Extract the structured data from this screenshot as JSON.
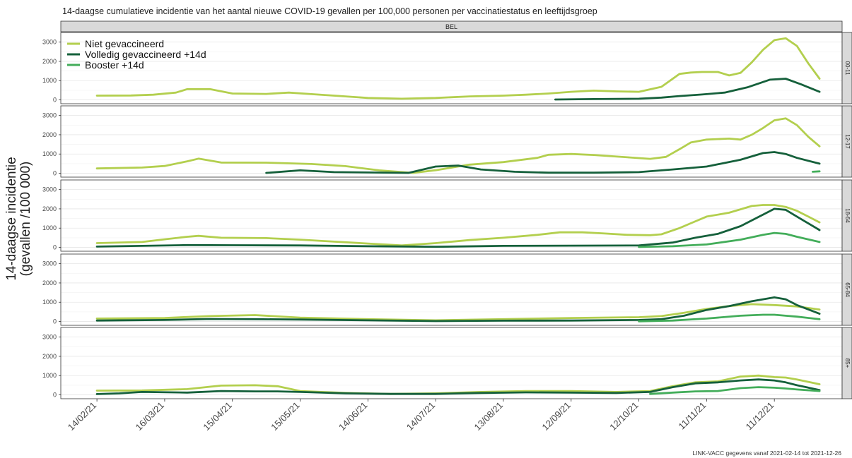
{
  "chart_data": {
    "type": "line",
    "title": "14-daagse cumulatieve incidentie van het aantal nieuwe COVID-19 gevallen per 100,000 personen per vaccinatiestatus en leeftijdsgroep",
    "ylabel_line1": "14-daagse incidentie",
    "ylabel_line2": "(gevallen /100 000)",
    "strip_top": "BEL",
    "caption": "LINK-VACC gegevens vanaf 2021-02-14 tot 2021-12-26",
    "x_ticks": [
      "14/02/21",
      "16/03/21",
      "15/04/21",
      "15/05/21",
      "14/06/21",
      "14/07/21",
      "13/08/21",
      "12/09/21",
      "12/10/21",
      "11/11/21",
      "11/12/21"
    ],
    "x_tick_days": [
      0,
      30,
      60,
      90,
      120,
      150,
      180,
      210,
      240,
      270,
      300
    ],
    "xlim_days": [
      -16,
      330
    ],
    "y_ticks": [
      0,
      1000,
      2000,
      3000
    ],
    "ylim": [
      -200,
      3500
    ],
    "legend_position": "top-left",
    "series_legend": [
      {
        "name": "Niet gevaccineerd",
        "color": "#b3cf4e"
      },
      {
        "name": "Volledig gevaccineerd +14d",
        "color": "#15603b"
      },
      {
        "name": "Booster +14d",
        "color": "#43ad5a"
      }
    ],
    "panels": [
      {
        "label": "00-11",
        "series": [
          {
            "name": "Niet gevaccineerd",
            "color": "#b3cf4e",
            "x": [
              0,
              15,
              25,
              35,
              40,
              50,
              60,
              75,
              85,
              95,
              105,
              120,
              135,
              150,
              165,
              180,
              190,
              200,
              210,
              220,
              230,
              240,
              250,
              258,
              263,
              268,
              275,
              280,
              285,
              290,
              295,
              300,
              305,
              310,
              315,
              320
            ],
            "y": [
              220,
              230,
              270,
              380,
              560,
              560,
              330,
              310,
              380,
              300,
              220,
              100,
              60,
              100,
              180,
              220,
              270,
              330,
              420,
              480,
              440,
              420,
              680,
              1350,
              1420,
              1450,
              1450,
              1270,
              1400,
              1950,
              2600,
              3100,
              3200,
              2800,
              1900,
              1100
            ]
          },
          {
            "name": "Volledig gevaccineerd +14d",
            "color": "#15603b",
            "x": [
              203,
              220,
              240,
              250,
              258,
              268,
              278,
              288,
              298,
              305,
              312,
              320
            ],
            "y": [
              20,
              40,
              60,
              120,
              200,
              280,
              380,
              650,
              1050,
              1100,
              800,
              420
            ]
          }
        ]
      },
      {
        "label": "12-17",
        "series": [
          {
            "name": "Niet gevaccineerd",
            "color": "#b3cf4e",
            "x": [
              0,
              20,
              30,
              40,
              45,
              55,
              75,
              95,
              110,
              125,
              140,
              150,
              165,
              180,
              195,
              200,
              210,
              220,
              235,
              245,
              252,
              258,
              263,
              270,
              280,
              285,
              290,
              295,
              300,
              305,
              310,
              315,
              320
            ],
            "y": [
              250,
              300,
              380,
              620,
              760,
              560,
              550,
              480,
              370,
              150,
              20,
              160,
              450,
              580,
              800,
              960,
              1000,
              950,
              830,
              750,
              850,
              1250,
              1600,
              1750,
              1800,
              1750,
              2000,
              2350,
              2750,
              2850,
              2500,
              1900,
              1400
            ]
          },
          {
            "name": "Volledig gevaccineerd +14d",
            "color": "#15603b",
            "x": [
              75,
              90,
              105,
              120,
              138,
              150,
              160,
              170,
              185,
              200,
              220,
              240,
              255,
              270,
              285,
              295,
              300,
              305,
              310,
              320
            ],
            "y": [
              20,
              150,
              60,
              40,
              20,
              350,
              400,
              200,
              80,
              30,
              30,
              60,
              200,
              350,
              700,
              1050,
              1100,
              1000,
              800,
              500
            ]
          },
          {
            "name": "Booster +14d",
            "color": "#43ad5a",
            "x": [
              317,
              320
            ],
            "y": [
              80,
              100
            ]
          }
        ]
      },
      {
        "label": "18-64",
        "series": [
          {
            "name": "Niet gevaccineerd",
            "color": "#b3cf4e",
            "x": [
              0,
              20,
              30,
              40,
              45,
              55,
              75,
              90,
              105,
              120,
              135,
              150,
              165,
              180,
              195,
              205,
              215,
              225,
              235,
              245,
              250,
              258,
              263,
              270,
              280,
              290,
              295,
              300,
              305,
              310,
              320
            ],
            "y": [
              220,
              280,
              420,
              550,
              600,
              500,
              480,
              400,
              300,
              200,
              100,
              220,
              380,
              500,
              650,
              780,
              780,
              720,
              650,
              630,
              680,
              1000,
              1250,
              1600,
              1800,
              2150,
              2200,
              2200,
              2100,
              1900,
              1300
            ]
          },
          {
            "name": "Volledig gevaccineerd +14d",
            "color": "#15603b",
            "x": [
              0,
              20,
              40,
              60,
              90,
              120,
              150,
              180,
              210,
              240,
              255,
              265,
              275,
              285,
              295,
              300,
              305,
              310,
              320
            ],
            "y": [
              40,
              80,
              120,
              110,
              100,
              60,
              30,
              80,
              90,
              100,
              250,
              500,
              700,
              1100,
              1700,
              2000,
              1950,
              1600,
              900
            ]
          },
          {
            "name": "Booster +14d",
            "color": "#43ad5a",
            "x": [
              240,
              255,
              270,
              285,
              295,
              300,
              305,
              310,
              320
            ],
            "y": [
              20,
              60,
              150,
              400,
              650,
              750,
              700,
              550,
              280
            ]
          }
        ]
      },
      {
        "label": "65-84",
        "series": [
          {
            "name": "Niet gevaccineerd",
            "color": "#b3cf4e",
            "x": [
              0,
              30,
              50,
              70,
              90,
              120,
              150,
              180,
              210,
              240,
              250,
              260,
              270,
              280,
              290,
              300,
              310,
              320
            ],
            "y": [
              150,
              180,
              280,
              330,
              200,
              120,
              60,
              120,
              180,
              220,
              280,
              450,
              650,
              800,
              900,
              850,
              780,
              620
            ]
          },
          {
            "name": "Volledig gevaccineerd +14d",
            "color": "#15603b",
            "x": [
              0,
              30,
              50,
              70,
              90,
              120,
              150,
              180,
              210,
              240,
              250,
              260,
              270,
              280,
              290,
              300,
              305,
              310,
              320
            ],
            "y": [
              50,
              80,
              130,
              120,
              100,
              60,
              20,
              40,
              50,
              80,
              120,
              300,
              600,
              800,
              1050,
              1250,
              1150,
              850,
              400
            ]
          },
          {
            "name": "Booster +14d",
            "color": "#43ad5a",
            "x": [
              240,
              255,
              270,
              285,
              295,
              300,
              305,
              310,
              320
            ],
            "y": [
              10,
              50,
              150,
              300,
              350,
              350,
              300,
              250,
              120
            ]
          }
        ]
      },
      {
        "label": "85+",
        "series": [
          {
            "name": "Niet gevaccineerd",
            "color": "#b3cf4e",
            "x": [
              0,
              20,
              40,
              55,
              70,
              80,
              90,
              110,
              130,
              150,
              170,
              190,
              210,
              230,
              245,
              255,
              265,
              275,
              285,
              293,
              300,
              305,
              310,
              320
            ],
            "y": [
              220,
              230,
              300,
              480,
              500,
              450,
              200,
              100,
              50,
              80,
              150,
              200,
              200,
              150,
              200,
              450,
              650,
              700,
              950,
              1000,
              920,
              900,
              800,
              550
            ]
          },
          {
            "name": "Volledig gevaccineerd +14d",
            "color": "#15603b",
            "x": [
              0,
              10,
              20,
              40,
              55,
              70,
              80,
              90,
              110,
              130,
              150,
              170,
              190,
              210,
              230,
              245,
              255,
              265,
              275,
              285,
              293,
              300,
              305,
              310,
              320
            ],
            "y": [
              40,
              80,
              150,
              120,
              200,
              180,
              180,
              150,
              80,
              50,
              50,
              100,
              130,
              120,
              100,
              150,
              400,
              600,
              650,
              750,
              800,
              750,
              650,
              500,
              250
            ]
          },
          {
            "name": "Booster +14d",
            "color": "#43ad5a",
            "x": [
              245,
              255,
              265,
              275,
              285,
              293,
              300,
              305,
              310,
              320
            ],
            "y": [
              50,
              120,
              180,
              200,
              350,
              400,
              370,
              330,
              280,
              200
            ]
          }
        ]
      }
    ]
  }
}
